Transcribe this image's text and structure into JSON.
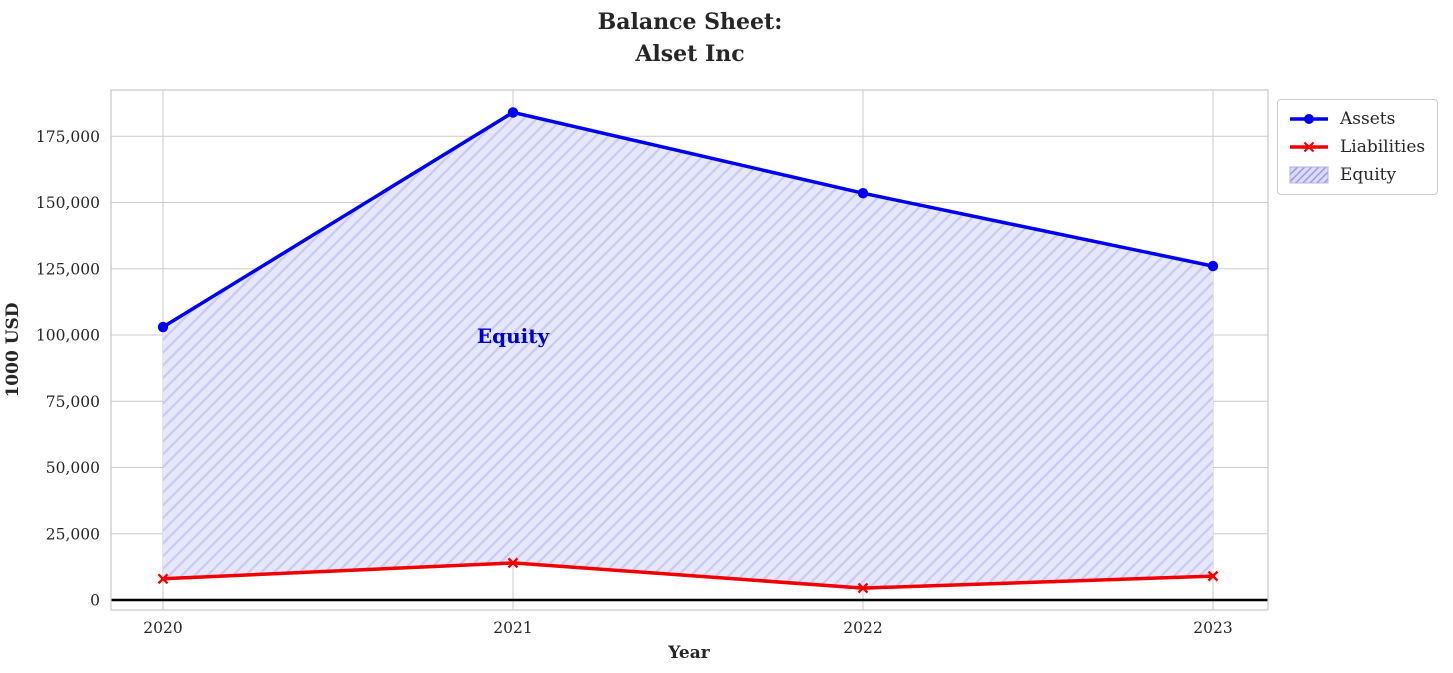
{
  "title": {
    "line1": "Balance Sheet:",
    "line2": "Alset Inc"
  },
  "chart_data": {
    "type": "line",
    "x_tick_labels": [
      "2020",
      "2021",
      "2022",
      "2023"
    ],
    "series": [
      {
        "name": "Assets",
        "values": [
          103000,
          184000,
          153500,
          126000
        ],
        "color": "#0000ee",
        "marker": "circle"
      },
      {
        "name": "Liabilities",
        "values": [
          8000,
          14000,
          4500,
          9000
        ],
        "color": "#f20000",
        "marker": "x"
      }
    ],
    "area": {
      "name": "Equity",
      "between": [
        "Assets",
        "Liabilities"
      ],
      "fill_color": "#e7e7fb",
      "hatch_color": "#c9c9f2",
      "hatch_style": "diagonal"
    },
    "annotation": {
      "text": "Equity",
      "near_x": "2021",
      "near_y": 100000,
      "color": "#0000cc"
    },
    "xlabel": "Year",
    "ylabel": "1000 USD",
    "yticks": [
      0,
      25000,
      50000,
      75000,
      100000,
      125000,
      150000,
      175000
    ],
    "ytick_labels": [
      "0",
      "25,000",
      "50,000",
      "75,000",
      "100,000",
      "125,000",
      "150,000",
      "175,000"
    ],
    "ylim_shown": [
      -3500,
      192500
    ],
    "grid": "on",
    "zero_line": {
      "shown": true,
      "color": "#000000"
    },
    "legend": {
      "position": "outside-top-right",
      "entries": [
        "Assets",
        "Liabilities",
        "Equity"
      ]
    },
    "colors": {
      "grid": "#cbcbcb",
      "frame": "#c9c9c9",
      "text": "#262626"
    }
  }
}
